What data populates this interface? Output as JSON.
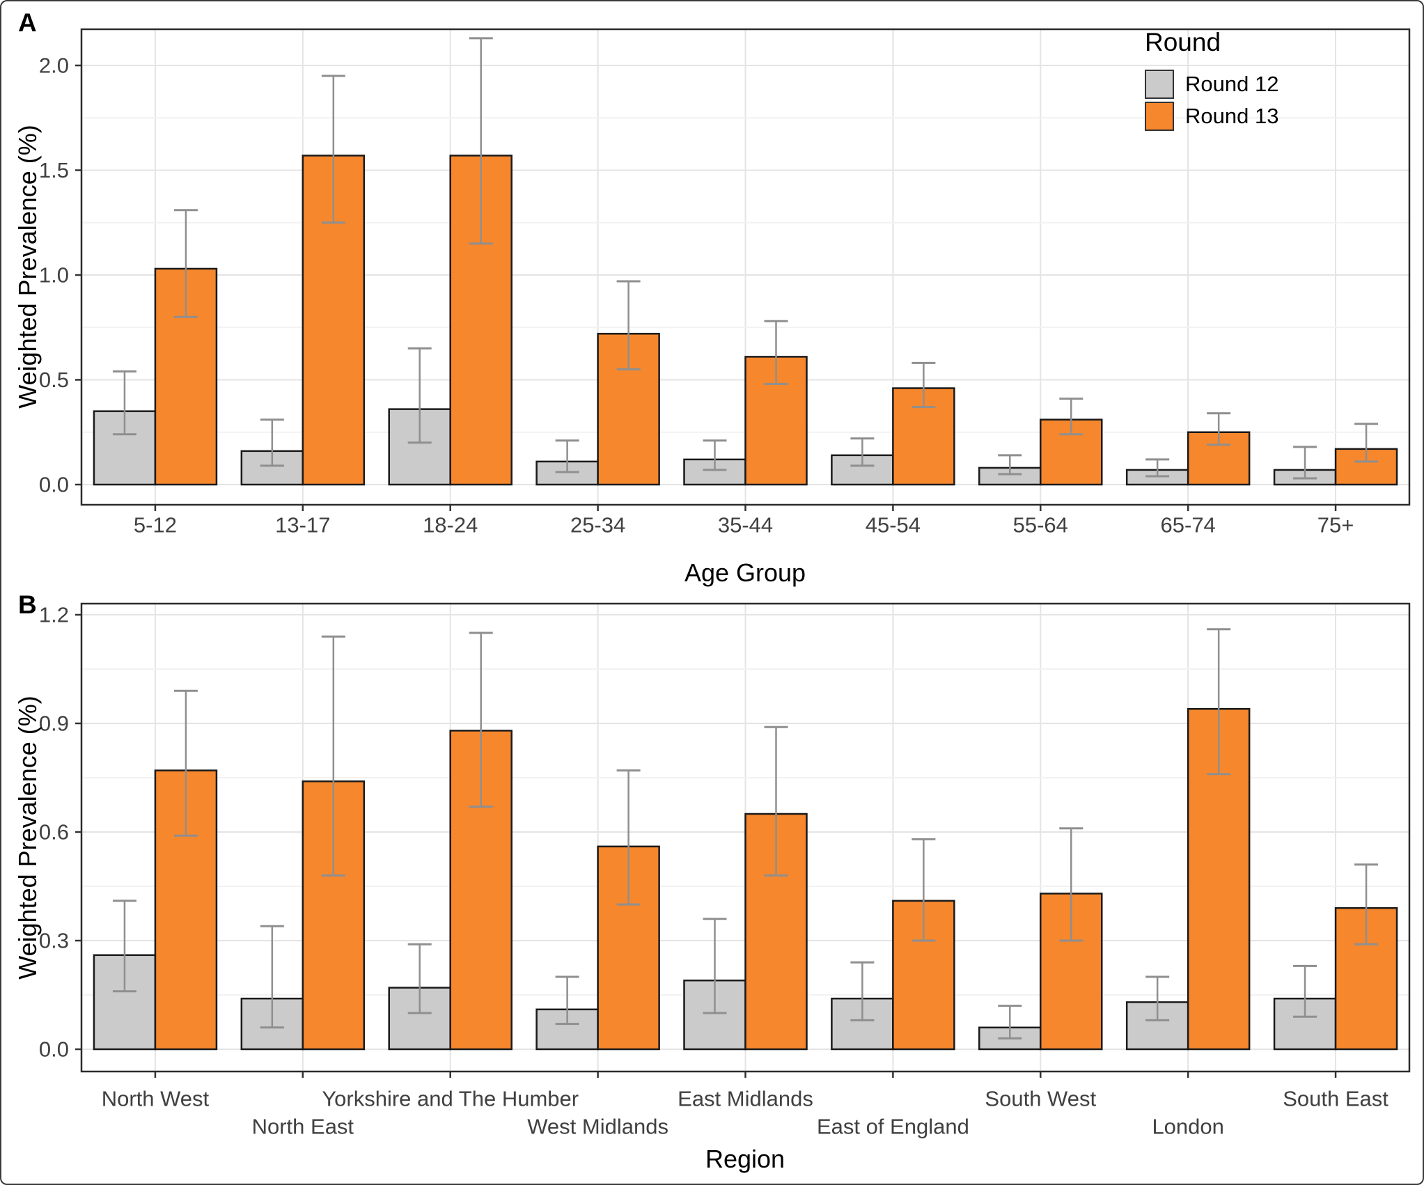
{
  "figure": {
    "panel_tags": {
      "a": "A",
      "b": "B"
    },
    "legend": {
      "title": "Round",
      "items": [
        {
          "label": "Round 12",
          "color": "#CBCBCB"
        },
        {
          "label": "Round 13",
          "color": "#F6872D"
        }
      ]
    }
  },
  "colors": {
    "round12_fill": "#CBCBCB",
    "round13_fill": "#F6872D",
    "bar_stroke": "#1A1A1A",
    "errorbar": "#8F8F8F",
    "grid_major": "#E4E4E4",
    "grid_minor": "#F2F2F2",
    "frame": "#2B2B2B",
    "tick_mark": "#333333",
    "tick_text": "#404040"
  },
  "chart_data": [
    {
      "type": "bar",
      "panel": "A",
      "xlabel": "Age Group",
      "ylabel": "Weighted Prevalence (%)",
      "categories": [
        "5-12",
        "13-17",
        "18-24",
        "25-34",
        "35-44",
        "45-54",
        "55-64",
        "65-74",
        "75+"
      ],
      "yticks": [
        0.0,
        0.5,
        1.0,
        1.5,
        2.0
      ],
      "ylim": [
        0,
        2.17
      ],
      "grid": true,
      "legend_position": "top-right-inside",
      "series": [
        {
          "name": "Round 12",
          "values": [
            0.35,
            0.16,
            0.36,
            0.11,
            0.12,
            0.14,
            0.08,
            0.07,
            0.07
          ],
          "ci_low": [
            0.24,
            0.09,
            0.2,
            0.06,
            0.07,
            0.09,
            0.05,
            0.04,
            0.03
          ],
          "ci_high": [
            0.54,
            0.31,
            0.65,
            0.21,
            0.21,
            0.22,
            0.14,
            0.12,
            0.18
          ]
        },
        {
          "name": "Round 13",
          "values": [
            1.03,
            1.57,
            1.57,
            0.72,
            0.61,
            0.46,
            0.31,
            0.25,
            0.17
          ],
          "ci_low": [
            0.8,
            1.25,
            1.15,
            0.55,
            0.48,
            0.37,
            0.24,
            0.19,
            0.11
          ],
          "ci_high": [
            1.31,
            1.95,
            2.13,
            0.97,
            0.78,
            0.58,
            0.41,
            0.34,
            0.29
          ]
        }
      ]
    },
    {
      "type": "bar",
      "panel": "B",
      "xlabel": "Region",
      "ylabel": "Weighted Prevalence (%)",
      "categories": [
        "North West",
        "North East",
        "Yorkshire and The Humber",
        "West Midlands",
        "East Midlands",
        "East of England",
        "South West",
        "London",
        "South East"
      ],
      "stagger_labels": true,
      "yticks": [
        0.0,
        0.3,
        0.6,
        0.9,
        1.2
      ],
      "ylim": [
        0,
        1.23
      ],
      "grid": true,
      "series": [
        {
          "name": "Round 12",
          "values": [
            0.26,
            0.14,
            0.17,
            0.11,
            0.19,
            0.14,
            0.06,
            0.13,
            0.14
          ],
          "ci_low": [
            0.16,
            0.06,
            0.1,
            0.07,
            0.1,
            0.08,
            0.03,
            0.08,
            0.09
          ],
          "ci_high": [
            0.41,
            0.34,
            0.29,
            0.2,
            0.36,
            0.24,
            0.12,
            0.2,
            0.23
          ]
        },
        {
          "name": "Round 13",
          "values": [
            0.77,
            0.74,
            0.88,
            0.56,
            0.65,
            0.41,
            0.43,
            0.94,
            0.39
          ],
          "ci_low": [
            0.59,
            0.48,
            0.67,
            0.4,
            0.48,
            0.3,
            0.3,
            0.76,
            0.29
          ],
          "ci_high": [
            0.99,
            1.14,
            1.15,
            0.77,
            0.89,
            0.58,
            0.61,
            1.16,
            0.51
          ]
        }
      ]
    }
  ]
}
